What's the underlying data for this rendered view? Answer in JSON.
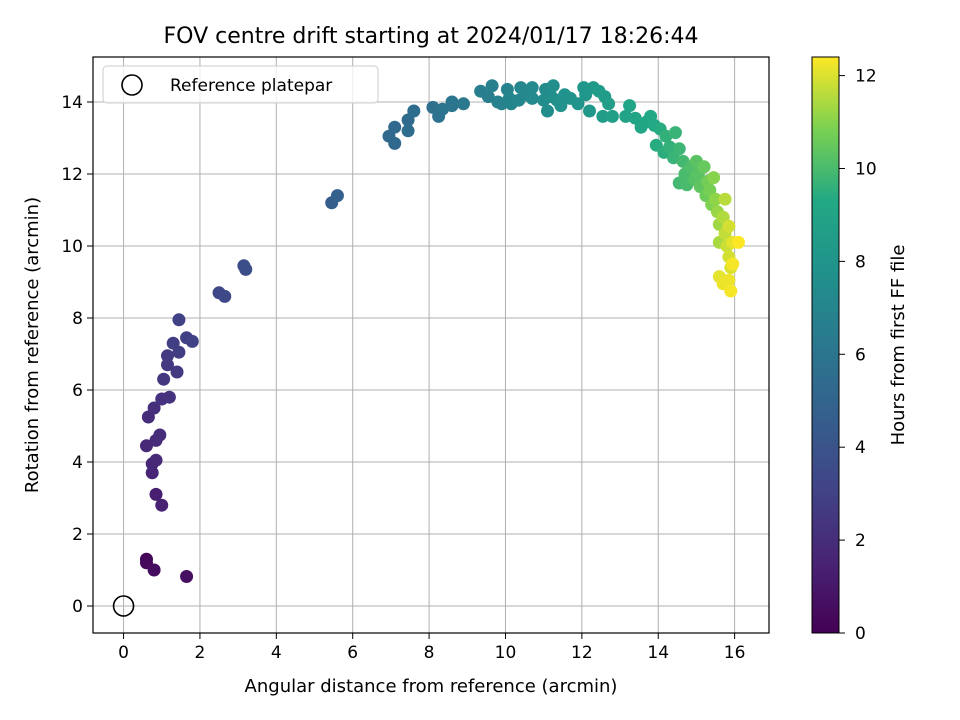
{
  "chart_data": {
    "type": "scatter",
    "title": "FOV centre drift starting at 2024/01/17 18:26:44",
    "xlabel": "Angular distance from reference (arcmin)",
    "ylabel": "Rotation from reference (arcmin)",
    "xlim": [
      -0.8,
      16.9
    ],
    "ylim": [
      -0.75,
      15.25
    ],
    "xticks": [
      "0",
      "2",
      "4",
      "6",
      "8",
      "10",
      "12",
      "14",
      "16"
    ],
    "yticks": [
      "0",
      "2",
      "4",
      "6",
      "8",
      "10",
      "12",
      "14"
    ],
    "grid": true,
    "legend": {
      "placement": "top-left",
      "entries": [
        "Reference platepar"
      ]
    },
    "reference_point": {
      "x": 0,
      "y": 0
    },
    "colorbar": {
      "label": "Hours from first FF file",
      "range": [
        0,
        12.4
      ],
      "ticks": [
        "0",
        "2",
        "4",
        "6",
        "8",
        "10",
        "12"
      ],
      "colormap": "viridis"
    },
    "series": [
      {
        "points": [
          {
            "x": 0.6,
            "y": 1.3,
            "t": 0.2
          },
          {
            "x": 0.6,
            "y": 1.2,
            "t": 0.3
          },
          {
            "x": 0.8,
            "y": 1.0,
            "t": 0.5
          },
          {
            "x": 1.65,
            "y": 0.82,
            "t": 0.6
          },
          {
            "x": 0.85,
            "y": 3.1,
            "t": 1.3
          },
          {
            "x": 1.0,
            "y": 2.8,
            "t": 1.5
          },
          {
            "x": 0.75,
            "y": 3.7,
            "t": 1.6
          },
          {
            "x": 0.75,
            "y": 3.95,
            "t": 1.7
          },
          {
            "x": 0.85,
            "y": 4.05,
            "t": 1.8
          },
          {
            "x": 0.6,
            "y": 4.45,
            "t": 1.8
          },
          {
            "x": 0.85,
            "y": 4.6,
            "t": 1.9
          },
          {
            "x": 0.95,
            "y": 4.75,
            "t": 2.0
          },
          {
            "x": 0.65,
            "y": 5.25,
            "t": 2.0
          },
          {
            "x": 0.8,
            "y": 5.5,
            "t": 2.1
          },
          {
            "x": 1.0,
            "y": 5.75,
            "t": 2.2
          },
          {
            "x": 1.2,
            "y": 5.8,
            "t": 2.3
          },
          {
            "x": 1.05,
            "y": 6.3,
            "t": 2.4
          },
          {
            "x": 1.15,
            "y": 6.7,
            "t": 2.5
          },
          {
            "x": 1.4,
            "y": 6.5,
            "t": 2.6
          },
          {
            "x": 1.15,
            "y": 6.95,
            "t": 2.7
          },
          {
            "x": 1.3,
            "y": 7.3,
            "t": 2.8
          },
          {
            "x": 1.45,
            "y": 7.05,
            "t": 2.8
          },
          {
            "x": 1.65,
            "y": 7.45,
            "t": 2.9
          },
          {
            "x": 1.8,
            "y": 7.35,
            "t": 3.0
          },
          {
            "x": 1.45,
            "y": 7.95,
            "t": 3.0
          },
          {
            "x": 2.5,
            "y": 8.7,
            "t": 3.3
          },
          {
            "x": 2.65,
            "y": 8.6,
            "t": 3.4
          },
          {
            "x": 3.15,
            "y": 9.45,
            "t": 3.6
          },
          {
            "x": 3.2,
            "y": 9.35,
            "t": 3.7
          },
          {
            "x": 5.45,
            "y": 11.2,
            "t": 4.6
          },
          {
            "x": 5.6,
            "y": 11.4,
            "t": 4.8
          },
          {
            "x": 6.95,
            "y": 13.05,
            "t": 5.2
          },
          {
            "x": 7.1,
            "y": 12.85,
            "t": 5.3
          },
          {
            "x": 7.1,
            "y": 13.3,
            "t": 5.3
          },
          {
            "x": 7.45,
            "y": 13.5,
            "t": 5.4
          },
          {
            "x": 7.45,
            "y": 13.2,
            "t": 5.5
          },
          {
            "x": 7.6,
            "y": 13.75,
            "t": 5.5
          },
          {
            "x": 8.1,
            "y": 13.85,
            "t": 5.7
          },
          {
            "x": 8.25,
            "y": 13.6,
            "t": 5.8
          },
          {
            "x": 8.35,
            "y": 13.8,
            "t": 5.9
          },
          {
            "x": 8.6,
            "y": 14.0,
            "t": 6.0
          },
          {
            "x": 8.6,
            "y": 13.9,
            "t": 6.1
          },
          {
            "x": 8.9,
            "y": 13.95,
            "t": 6.2
          },
          {
            "x": 9.35,
            "y": 14.3,
            "t": 6.5
          },
          {
            "x": 9.55,
            "y": 14.15,
            "t": 6.6
          },
          {
            "x": 9.65,
            "y": 14.45,
            "t": 6.7
          },
          {
            "x": 9.8,
            "y": 14.0,
            "t": 6.8
          },
          {
            "x": 9.9,
            "y": 13.95,
            "t": 6.8
          },
          {
            "x": 10.05,
            "y": 14.35,
            "t": 6.9
          },
          {
            "x": 10.1,
            "y": 14.1,
            "t": 7.0
          },
          {
            "x": 10.15,
            "y": 13.95,
            "t": 7.0
          },
          {
            "x": 10.35,
            "y": 14.05,
            "t": 7.1
          },
          {
            "x": 10.4,
            "y": 14.4,
            "t": 7.1
          },
          {
            "x": 10.55,
            "y": 14.2,
            "t": 7.2
          },
          {
            "x": 10.7,
            "y": 14.4,
            "t": 7.3
          },
          {
            "x": 10.7,
            "y": 14.1,
            "t": 7.3
          },
          {
            "x": 11.05,
            "y": 14.35,
            "t": 7.4
          },
          {
            "x": 11.0,
            "y": 14.05,
            "t": 7.5
          },
          {
            "x": 11.1,
            "y": 13.75,
            "t": 7.5
          },
          {
            "x": 11.2,
            "y": 14.15,
            "t": 7.6
          },
          {
            "x": 11.25,
            "y": 14.45,
            "t": 7.6
          },
          {
            "x": 11.35,
            "y": 14.05,
            "t": 7.7
          },
          {
            "x": 11.45,
            "y": 13.9,
            "t": 7.8
          },
          {
            "x": 11.55,
            "y": 14.2,
            "t": 7.8
          },
          {
            "x": 11.7,
            "y": 14.1,
            "t": 7.9
          },
          {
            "x": 11.9,
            "y": 13.95,
            "t": 8.0
          },
          {
            "x": 12.05,
            "y": 14.4,
            "t": 8.1
          },
          {
            "x": 12.1,
            "y": 14.2,
            "t": 8.1
          },
          {
            "x": 12.2,
            "y": 13.75,
            "t": 8.2
          },
          {
            "x": 12.3,
            "y": 14.4,
            "t": 8.3
          },
          {
            "x": 12.45,
            "y": 14.3,
            "t": 8.4
          },
          {
            "x": 12.55,
            "y": 13.6,
            "t": 8.5
          },
          {
            "x": 12.6,
            "y": 14.15,
            "t": 8.5
          },
          {
            "x": 12.7,
            "y": 13.95,
            "t": 8.6
          },
          {
            "x": 12.8,
            "y": 13.6,
            "t": 8.7
          },
          {
            "x": 13.15,
            "y": 13.6,
            "t": 8.9
          },
          {
            "x": 13.25,
            "y": 13.9,
            "t": 9.0
          },
          {
            "x": 13.4,
            "y": 13.55,
            "t": 9.0
          },
          {
            "x": 13.55,
            "y": 13.3,
            "t": 9.1
          },
          {
            "x": 13.7,
            "y": 13.45,
            "t": 9.2
          },
          {
            "x": 13.8,
            "y": 13.6,
            "t": 9.3
          },
          {
            "x": 13.9,
            "y": 13.35,
            "t": 9.3
          },
          {
            "x": 13.95,
            "y": 12.8,
            "t": 9.4
          },
          {
            "x": 14.05,
            "y": 13.25,
            "t": 9.4
          },
          {
            "x": 14.15,
            "y": 12.6,
            "t": 9.5
          },
          {
            "x": 14.2,
            "y": 13.05,
            "t": 9.6
          },
          {
            "x": 14.3,
            "y": 12.75,
            "t": 9.6
          },
          {
            "x": 14.4,
            "y": 12.45,
            "t": 9.7
          },
          {
            "x": 14.45,
            "y": 13.15,
            "t": 9.7
          },
          {
            "x": 14.55,
            "y": 12.7,
            "t": 9.8
          },
          {
            "x": 14.55,
            "y": 11.75,
            "t": 9.9
          },
          {
            "x": 14.65,
            "y": 12.35,
            "t": 9.9
          },
          {
            "x": 14.7,
            "y": 12.0,
            "t": 10.0
          },
          {
            "x": 14.75,
            "y": 11.7,
            "t": 10.0
          },
          {
            "x": 14.85,
            "y": 12.2,
            "t": 10.1
          },
          {
            "x": 14.95,
            "y": 11.85,
            "t": 10.2
          },
          {
            "x": 15.0,
            "y": 12.35,
            "t": 10.3
          },
          {
            "x": 15.05,
            "y": 12.0,
            "t": 10.3
          },
          {
            "x": 15.1,
            "y": 11.65,
            "t": 10.4
          },
          {
            "x": 15.2,
            "y": 12.2,
            "t": 10.5
          },
          {
            "x": 15.25,
            "y": 11.4,
            "t": 10.6
          },
          {
            "x": 15.3,
            "y": 11.8,
            "t": 10.7
          },
          {
            "x": 15.35,
            "y": 11.55,
            "t": 10.8
          },
          {
            "x": 15.4,
            "y": 11.15,
            "t": 10.9
          },
          {
            "x": 15.45,
            "y": 11.9,
            "t": 11.0
          },
          {
            "x": 15.5,
            "y": 11.3,
            "t": 11.1
          },
          {
            "x": 15.55,
            "y": 10.95,
            "t": 11.2
          },
          {
            "x": 15.6,
            "y": 10.6,
            "t": 11.3
          },
          {
            "x": 15.6,
            "y": 10.1,
            "t": 11.4
          },
          {
            "x": 15.7,
            "y": 10.8,
            "t": 11.5
          },
          {
            "x": 15.75,
            "y": 11.3,
            "t": 11.6
          },
          {
            "x": 15.75,
            "y": 10.35,
            "t": 11.7
          },
          {
            "x": 15.8,
            "y": 10.0,
            "t": 11.8
          },
          {
            "x": 15.85,
            "y": 9.7,
            "t": 11.9
          },
          {
            "x": 15.85,
            "y": 10.55,
            "t": 11.9
          },
          {
            "x": 15.9,
            "y": 9.4,
            "t": 12.0
          },
          {
            "x": 15.95,
            "y": 10.1,
            "t": 12.1
          },
          {
            "x": 15.6,
            "y": 9.15,
            "t": 12.1
          },
          {
            "x": 15.7,
            "y": 8.95,
            "t": 12.2
          },
          {
            "x": 15.85,
            "y": 9.05,
            "t": 12.2
          },
          {
            "x": 15.95,
            "y": 9.5,
            "t": 12.3
          },
          {
            "x": 15.9,
            "y": 8.75,
            "t": 12.3
          },
          {
            "x": 16.1,
            "y": 10.1,
            "t": 12.4
          }
        ]
      }
    ]
  }
}
